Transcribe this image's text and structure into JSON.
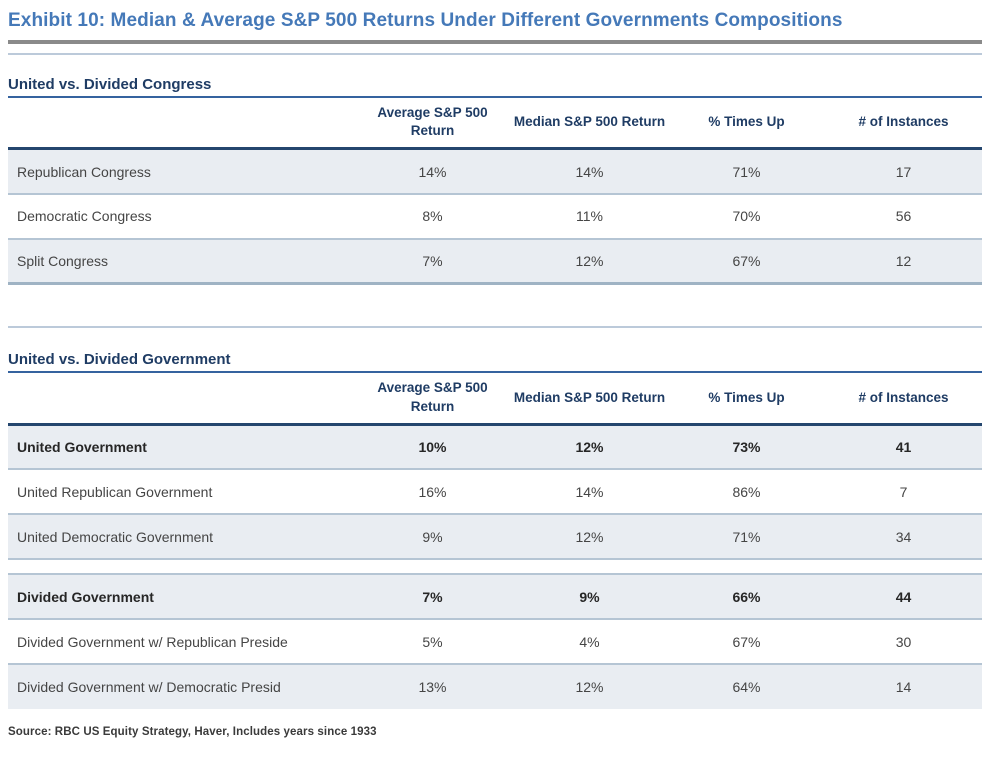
{
  "title": "Exhibit 10: Median & Average S&P 500 Returns Under Different Governments Compositions",
  "source": "Source: RBC US Equity Strategy, Haver, Includes years since 1933",
  "colors": {
    "title_blue": "#4579b8",
    "heading_navy": "#1f3c64",
    "section_rule_blue": "#35639f",
    "header_rule_navy": "#24466e",
    "row_shade": "#e9edf2",
    "row_divider": "#b5c5d4",
    "light_rule": "#bccada",
    "thick_gray_rule": "#8a8a8a",
    "body_text": "#454545",
    "bold_text": "#262626"
  },
  "tables": [
    {
      "section_title": "United vs. Divided Congress",
      "columns": [
        "Average S&P 500 Return",
        "Median S&P 500 Return",
        "% Times Up",
        "# of Instances"
      ],
      "rows": [
        {
          "label": "Republican Congress",
          "avg": "14%",
          "median": "14%",
          "pct_up": "71%",
          "instances": "17",
          "bold": false,
          "shaded": true
        },
        {
          "label": "Democratic Congress",
          "avg": "8%",
          "median": "11%",
          "pct_up": "70%",
          "instances": "56",
          "bold": false,
          "shaded": false
        },
        {
          "label": "Split Congress",
          "avg": "7%",
          "median": "12%",
          "pct_up": "67%",
          "instances": "12",
          "bold": false,
          "shaded": true
        }
      ]
    },
    {
      "section_title": "United vs. Divided Government",
      "columns": [
        "Average S&P 500 Return",
        "Median S&P 500 Return",
        "% Times Up",
        "# of Instances"
      ],
      "rows": [
        {
          "label": "United Government",
          "avg": "10%",
          "median": "12%",
          "pct_up": "73%",
          "instances": "41",
          "bold": true,
          "shaded": true
        },
        {
          "label": "United Republican Government",
          "avg": "16%",
          "median": "14%",
          "pct_up": "86%",
          "instances": "7",
          "bold": false,
          "shaded": false
        },
        {
          "label": "United Democratic Government",
          "avg": "9%",
          "median": "12%",
          "pct_up": "71%",
          "instances": "34",
          "bold": false,
          "shaded": true
        },
        {
          "spacer": true
        },
        {
          "label": "Divided Government",
          "avg": "7%",
          "median": "9%",
          "pct_up": "66%",
          "instances": "44",
          "bold": true,
          "shaded": true
        },
        {
          "label": "Divided Government w/ Republican Preside",
          "avg": "5%",
          "median": "4%",
          "pct_up": "67%",
          "instances": "30",
          "bold": false,
          "shaded": false
        },
        {
          "label": "Divided Government w/ Democratic Presid",
          "avg": "13%",
          "median": "12%",
          "pct_up": "64%",
          "instances": "14",
          "bold": false,
          "shaded": true
        }
      ]
    }
  ]
}
